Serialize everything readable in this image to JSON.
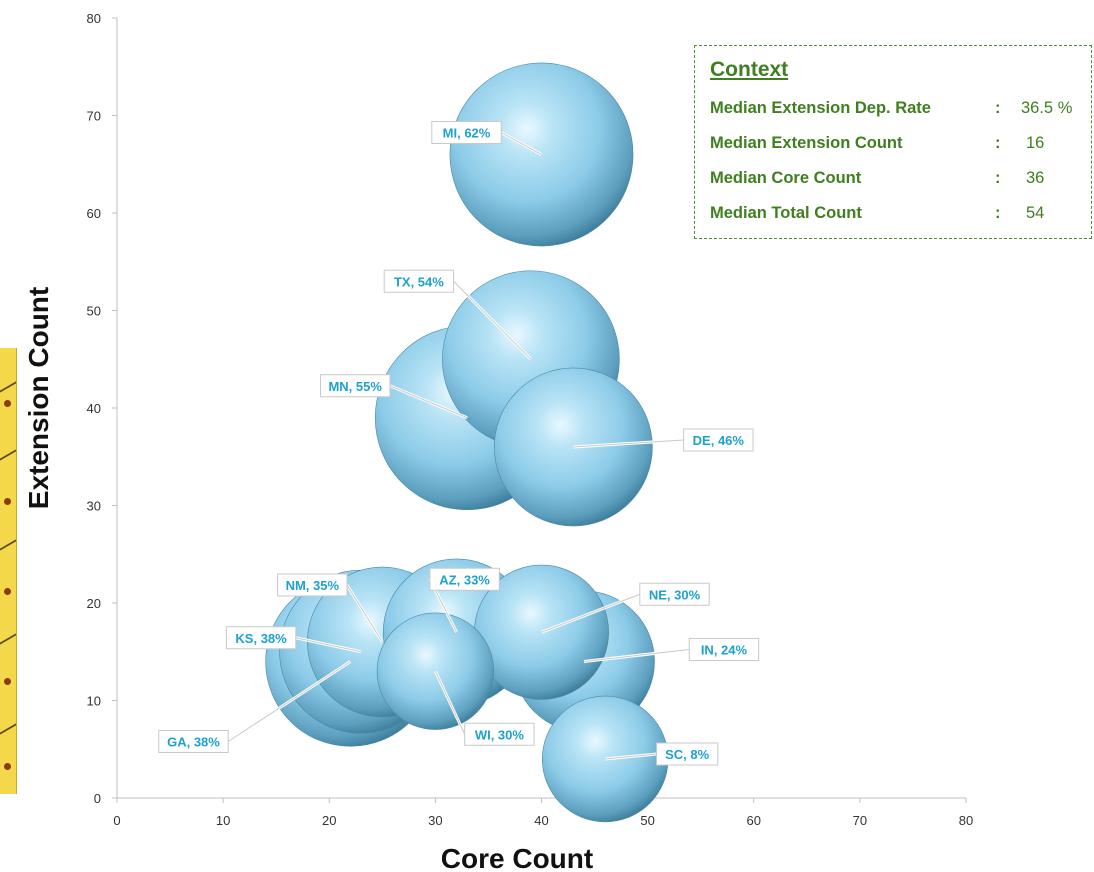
{
  "chart_data": {
    "type": "bubble",
    "title": "",
    "xlabel": "Core Count",
    "ylabel": "Extension Count",
    "xlim": [
      0,
      80
    ],
    "ylim": [
      0,
      80
    ],
    "xticks": [
      0,
      10,
      20,
      30,
      40,
      50,
      60,
      70,
      80
    ],
    "yticks": [
      0,
      10,
      20,
      30,
      40,
      50,
      60,
      70,
      80
    ],
    "grid": false,
    "bubble_color": "#8ccbe8",
    "label_color": "#1ea1d0",
    "points": [
      {
        "label": "MI, 62%",
        "x": 40,
        "y": 66,
        "size": 106
      },
      {
        "label": "TX, 54%",
        "x": 39,
        "y": 45,
        "size": 99
      },
      {
        "label": "MN, 55%",
        "x": 33,
        "y": 39,
        "size": 107
      },
      {
        "label": "DE, 46%",
        "x": 43,
        "y": 36,
        "size": 79
      },
      {
        "label": "NM, 35%",
        "x": 25,
        "y": 16,
        "size": 71
      },
      {
        "label": "AZ, 33%",
        "x": 32,
        "y": 17,
        "size": 68
      },
      {
        "label": "NE, 30%",
        "x": 40,
        "y": 17,
        "size": 57
      },
      {
        "label": "KS, 38%",
        "x": 23,
        "y": 15,
        "size": 84
      },
      {
        "label": "IN, 24%",
        "x": 44,
        "y": 14,
        "size": 63
      },
      {
        "label": "GA, 38%",
        "x": 22,
        "y": 14,
        "size": 91
      },
      {
        "label": "WI, 30%",
        "x": 30,
        "y": 13,
        "size": 43
      },
      {
        "label": "SC, 8%",
        "x": 46,
        "y": 4,
        "size": 50
      }
    ]
  },
  "context": {
    "title": "Context",
    "rows": [
      {
        "label": "Median Extension Dep. Rate",
        "value": "36.5 %"
      },
      {
        "label": "Median Extension Count",
        "value": "16"
      },
      {
        "label": "Median Core Count",
        "value": "36"
      },
      {
        "label": "Median Total Count",
        "value": "54"
      }
    ]
  },
  "colors": {
    "accent_green": "#3f7f1f",
    "bubble": "#8ccbe8"
  }
}
